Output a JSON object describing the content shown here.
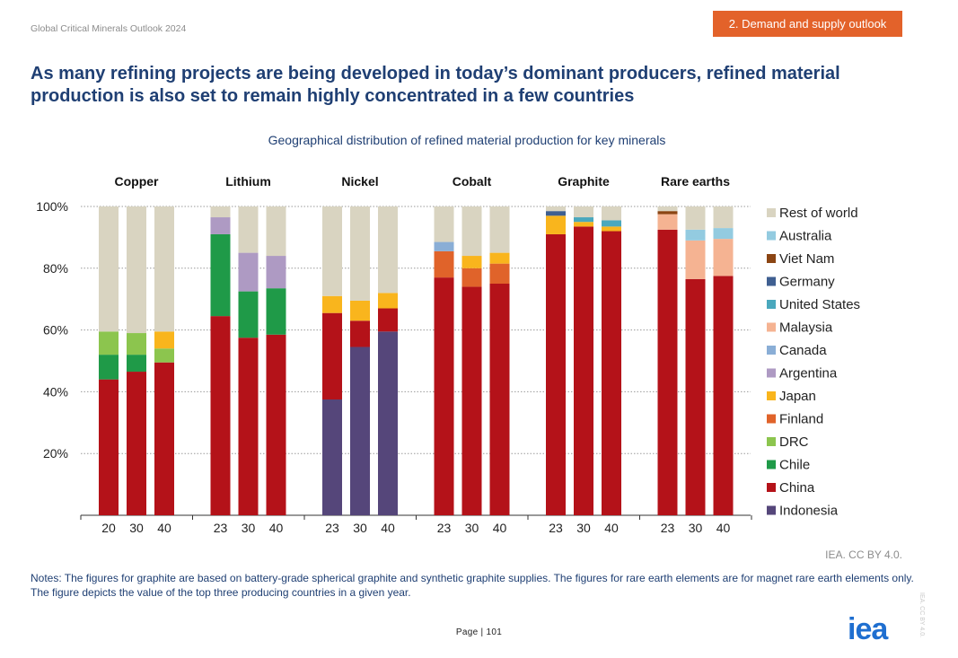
{
  "header": {
    "report_name": "Global Critical Minerals Outlook 2024",
    "section": "2. Demand and supply outlook"
  },
  "title": "As many refining projects are being developed in today’s dominant producers, refined material production is also set to remain highly concentrated in a few countries",
  "credit": "IEA. CC BY 4.0.",
  "notes": "Notes: The figures for graphite are based on battery-grade spherical graphite and synthetic graphite supplies. The figures for rare earth elements are for magnet rare earth elements only. The figure depicts the value of the top three producing countries in a given year.",
  "page_label": "Page | 101",
  "logo_text": "iea",
  "watermark": "IEA. CC BY 4.0.",
  "chart_data": {
    "type": "bar",
    "stacked": true,
    "title": "Geographical distribution of refined material production for key minerals",
    "ylim": [
      0,
      100
    ],
    "yticks": [
      "20%",
      "40%",
      "60%",
      "80%",
      "100%"
    ],
    "grid": true,
    "legend_position": "right",
    "series_names": [
      "Indonesia",
      "China",
      "Chile",
      "DRC",
      "Finland",
      "Japan",
      "Argentina",
      "Canada",
      "Malaysia",
      "United States",
      "Germany",
      "Viet Nam",
      "Australia",
      "Rest of world"
    ],
    "colors": {
      "Indonesia": "#55467a",
      "China": "#b41219",
      "Chile": "#1f9a48",
      "DRC": "#8cc54e",
      "Finland": "#e0632a",
      "Japan": "#f9b51d",
      "Argentina": "#ae9ac3",
      "Canada": "#8aaed6",
      "Malaysia": "#f5b392",
      "United States": "#4aa8bd",
      "Germany": "#3f5f91",
      "Viet Nam": "#8b4513",
      "Australia": "#93cbe0",
      "Rest of world": "#d9d4c1"
    },
    "legend": [
      "Rest of world",
      "Australia",
      "Viet Nam",
      "Germany",
      "United States",
      "Malaysia",
      "Canada",
      "Argentina",
      "Japan",
      "Finland",
      "DRC",
      "Chile",
      "China",
      "Indonesia"
    ],
    "groups": [
      {
        "name": "Copper",
        "years": [
          "20",
          "30",
          "40"
        ],
        "bars": [
          {
            "China": 44,
            "Chile": 8,
            "DRC": 7.5,
            "Rest of world": 40.5
          },
          {
            "China": 46.5,
            "Chile": 5.5,
            "DRC": 7,
            "Rest of world": 41
          },
          {
            "China": 49.5,
            "DRC": 4.5,
            "Japan": 5.5,
            "Rest of world": 40.5
          }
        ]
      },
      {
        "name": "Lithium",
        "years": [
          "23",
          "30",
          "40"
        ],
        "bars": [
          {
            "China": 64.5,
            "Chile": 26.5,
            "Argentina": 5.5,
            "Rest of world": 3.5
          },
          {
            "China": 57.5,
            "Chile": 15,
            "Argentina": 12.5,
            "Rest of world": 15
          },
          {
            "China": 58.5,
            "Chile": 15,
            "Argentina": 10.5,
            "Rest of world": 16
          }
        ]
      },
      {
        "name": "Nickel",
        "years": [
          "23",
          "30",
          "40"
        ],
        "bars": [
          {
            "Indonesia": 37.5,
            "China": 28,
            "Japan": 5.5,
            "Rest of world": 29
          },
          {
            "Indonesia": 54.5,
            "China": 8.5,
            "Japan": 6.5,
            "Rest of world": 30.5
          },
          {
            "Indonesia": 59.5,
            "China": 7.5,
            "Japan": 5,
            "Rest of world": 28
          }
        ]
      },
      {
        "name": "Cobalt",
        "years": [
          "23",
          "30",
          "40"
        ],
        "bars": [
          {
            "China": 77,
            "Finland": 8.5,
            "Canada": 3,
            "Rest of world": 11.5
          },
          {
            "China": 74,
            "Finland": 6,
            "Japan": 4,
            "Rest of world": 16
          },
          {
            "China": 75,
            "Finland": 6.5,
            "Japan": 3.5,
            "Rest of world": 15
          }
        ]
      },
      {
        "name": "Graphite",
        "years": [
          "23",
          "30",
          "40"
        ],
        "bars": [
          {
            "China": 91,
            "Japan": 6,
            "Germany": 1.5,
            "Rest of world": 1.5
          },
          {
            "China": 93.5,
            "Japan": 1.5,
            "United States": 1.5,
            "Rest of world": 3.5
          },
          {
            "China": 92,
            "Japan": 1.5,
            "United States": 2,
            "Rest of world": 4.5
          }
        ]
      },
      {
        "name": "Rare earths",
        "years": [
          "23",
          "30",
          "40"
        ],
        "bars": [
          {
            "China": 92.5,
            "Malaysia": 5,
            "Viet Nam": 1,
            "Rest of world": 1.5
          },
          {
            "China": 76.5,
            "Malaysia": 12.5,
            "Australia": 3.5,
            "Rest of world": 7.5
          },
          {
            "China": 77.5,
            "Malaysia": 12,
            "Australia": 3.5,
            "Rest of world": 7
          }
        ]
      }
    ]
  }
}
